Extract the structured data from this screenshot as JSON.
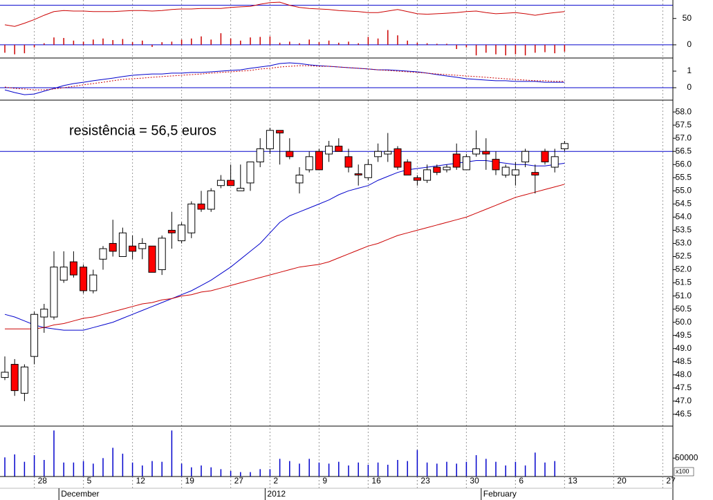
{
  "chart_data": [
    {
      "type": "oscillator",
      "ylim": [
        -25,
        85
      ],
      "yticks": [
        0,
        50
      ],
      "reference_lines": [
        75,
        0
      ],
      "reference_color": "#0000cc",
      "line": {
        "color": "#cc0000",
        "values": [
          38,
          35,
          41,
          48,
          56,
          63,
          65,
          64,
          64,
          63,
          63,
          63,
          64,
          65,
          65,
          64,
          65,
          67,
          68,
          68,
          69,
          69,
          69,
          71,
          72,
          73,
          77,
          80,
          81,
          75,
          71,
          69,
          68,
          67,
          65,
          64,
          63,
          61,
          61,
          64,
          67,
          63,
          59,
          58,
          59,
          60,
          61,
          63,
          64,
          61,
          59,
          60,
          61,
          59,
          56,
          59,
          61,
          63,
          null,
          null,
          null,
          null,
          null,
          null,
          null,
          null,
          null,
          null,
          null
        ]
      },
      "histogram": {
        "color": "#cc0000",
        "values": [
          -15,
          -18,
          -16,
          -5,
          3,
          14,
          13,
          8,
          6,
          10,
          12,
          9,
          11,
          5,
          8,
          -4,
          5,
          6,
          10,
          12,
          16,
          10,
          22,
          12,
          8,
          14,
          15,
          16,
          4,
          6,
          3,
          10,
          5,
          8,
          4,
          6,
          3,
          15,
          12,
          28,
          18,
          8,
          4,
          3,
          2,
          2,
          -8,
          -5,
          -20,
          -15,
          -18,
          -20,
          -18,
          -20,
          -15,
          -14,
          -16,
          -13,
          null,
          null,
          null,
          null,
          null,
          null,
          null,
          null,
          null,
          null,
          null
        ]
      }
    },
    {
      "type": "line",
      "ylim": [
        -0.75,
        1.75
      ],
      "yticks": [
        0,
        1
      ],
      "reference_lines": [
        0
      ],
      "reference_color": "#0000cc",
      "series": [
        {
          "color": "#0000cc",
          "dashed": false,
          "values": [
            -0.13,
            -0.29,
            -0.42,
            -0.38,
            -0.21,
            -0.04,
            0.13,
            0.25,
            0.33,
            0.42,
            0.5,
            0.58,
            0.67,
            0.75,
            0.79,
            0.83,
            0.83,
            0.88,
            0.88,
            0.92,
            0.92,
            0.96,
            1.0,
            1.04,
            1.08,
            1.17,
            1.25,
            1.33,
            1.46,
            1.5,
            1.46,
            1.38,
            1.33,
            1.29,
            1.25,
            1.21,
            1.17,
            1.13,
            1.08,
            1.08,
            1.04,
            1.0,
            0.96,
            0.88,
            0.79,
            0.71,
            0.63,
            0.54,
            0.5,
            0.46,
            0.42,
            0.42,
            0.38,
            0.38,
            0.38,
            0.33,
            0.33,
            0.33,
            null,
            null,
            null,
            null,
            null,
            null,
            null,
            null,
            null,
            null,
            null
          ]
        },
        {
          "color": "#cc0000",
          "dashed": true,
          "values": [
            0.04,
            -0.04,
            -0.08,
            -0.13,
            -0.13,
            -0.08,
            0,
            0.08,
            0.17,
            0.25,
            0.33,
            0.42,
            0.5,
            0.54,
            0.58,
            0.63,
            0.67,
            0.71,
            0.75,
            0.79,
            0.83,
            0.88,
            0.92,
            0.96,
            1.0,
            1.04,
            1.13,
            1.17,
            1.25,
            1.29,
            1.33,
            1.33,
            1.29,
            1.29,
            1.25,
            1.21,
            1.17,
            1.13,
            1.08,
            1.04,
            1.0,
            0.96,
            0.92,
            0.88,
            0.83,
            0.79,
            0.75,
            0.71,
            0.67,
            0.63,
            0.58,
            0.54,
            0.5,
            0.46,
            0.42,
            0.42,
            0.38,
            0.38,
            null,
            null,
            null,
            null,
            null,
            null,
            null,
            null,
            null,
            null,
            null
          ]
        }
      ]
    },
    {
      "type": "candlestick",
      "annotation": "resistência = 56,5 euros",
      "reference_lines": [
        56.5
      ],
      "reference_color": "#0000cc",
      "ylim": [
        46.05,
        58.45
      ],
      "yticks": [
        46.5,
        {
          "value": 47,
          "label": "47.0"
        },
        47.5,
        {
          "value": 48,
          "label": "48.0"
        },
        48.5,
        {
          "value": 49,
          "label": "49.0"
        },
        49.5,
        {
          "value": 50,
          "label": "50.0"
        },
        50.5,
        {
          "value": 51,
          "label": "51.0"
        },
        51.5,
        {
          "value": 52,
          "label": "52.0"
        },
        52.5,
        {
          "value": 53,
          "label": "53.0"
        },
        53.5,
        {
          "value": 54,
          "label": "54.0"
        },
        54.5,
        {
          "value": 55,
          "label": "55.0"
        },
        55.5,
        {
          "value": 56,
          "label": "56.0"
        },
        56.5,
        {
          "value": 57,
          "label": "57.0"
        },
        57.5,
        {
          "value": 58,
          "label": "58.0"
        }
      ],
      "up_color": "#ffffff",
      "down_color": "#ff0000",
      "open": [
        47.9,
        48.4,
        47.3,
        48.7,
        50.2,
        50.2,
        51.6,
        52.3,
        52.1,
        51.2,
        52.4,
        53.0,
        52.5,
        52.9,
        52.8,
        52.9,
        52.0,
        53.5,
        53.1,
        53.4,
        54.5,
        54.3,
        55.2,
        55.4,
        55.0,
        55.3,
        56.1,
        56.6,
        57.3,
        56.5,
        55.3,
        55.8,
        56.5,
        56.4,
        56.7,
        56.3,
        55.65,
        55.5,
        56.3,
        56.4,
        56.6,
        56.1,
        55.5,
        55.4,
        55.9,
        55.8,
        56.4,
        55.8,
        56.4,
        56.5,
        56.2,
        55.6,
        55.6,
        56.1,
        55.7,
        56.5,
        55.9,
        56.6,
        null,
        null,
        null,
        null,
        null,
        null,
        null,
        null,
        null,
        null,
        null
      ],
      "high": [
        48.7,
        48.6,
        48.4,
        50.4,
        50.7,
        52.7,
        52.7,
        52.7,
        52.2,
        52.0,
        52.9,
        53.9,
        53.6,
        53.3,
        53.2,
        52.9,
        53.3,
        54.2,
        53.8,
        54.6,
        55.0,
        55.1,
        55.6,
        56.0,
        56.0,
        56.1,
        57.0,
        57.4,
        57.3,
        57.0,
        55.9,
        56.5,
        56.6,
        56.9,
        57.0,
        56.6,
        56.0,
        56.2,
        56.8,
        57.2,
        56.7,
        56.2,
        55.6,
        56.0,
        56.0,
        56.0,
        56.8,
        56.4,
        57.3,
        57.0,
        56.5,
        56.0,
        56.1,
        56.6,
        56.0,
        56.6,
        56.6,
        56.9,
        null,
        null,
        null,
        null,
        null,
        null,
        null,
        null,
        null,
        null,
        null
      ],
      "low": [
        47.8,
        47.2,
        47.0,
        48.4,
        49.6,
        50.1,
        51.5,
        51.7,
        51.1,
        51.1,
        52.0,
        52.5,
        52.5,
        52.4,
        52.4,
        51.9,
        51.8,
        52.8,
        53.0,
        53.2,
        54.2,
        54.2,
        55.1,
        55.2,
        55.0,
        55.0,
        55.9,
        56.4,
        56.0,
        56.2,
        54.9,
        55.7,
        55.8,
        56.1,
        56.5,
        55.7,
        55.2,
        55.4,
        56.1,
        56.1,
        55.8,
        55.6,
        55.2,
        55.3,
        55.6,
        55.7,
        55.8,
        55.8,
        56.3,
        55.8,
        55.6,
        55.5,
        55.2,
        55.9,
        54.9,
        56.0,
        55.7,
        56.5,
        null,
        null,
        null,
        null,
        null,
        null,
        null,
        null,
        null,
        null,
        null
      ],
      "close": [
        48.1,
        47.4,
        48.3,
        50.3,
        50.5,
        52.1,
        52.1,
        51.8,
        51.2,
        51.8,
        52.8,
        52.7,
        53.4,
        52.7,
        53.0,
        51.9,
        53.2,
        53.4,
        53.7,
        54.5,
        54.3,
        55.0,
        55.4,
        55.2,
        55.1,
        56.1,
        56.6,
        57.3,
        57.2,
        56.3,
        55.6,
        56.3,
        55.8,
        56.7,
        56.5,
        55.9,
        55.6,
        56.0,
        56.5,
        56.5,
        55.9,
        55.6,
        55.4,
        55.8,
        55.7,
        55.9,
        55.9,
        56.3,
        56.6,
        56.4,
        55.8,
        55.9,
        55.8,
        56.5,
        55.6,
        56.1,
        56.3,
        56.8,
        null,
        null,
        null,
        null,
        null,
        null,
        null,
        null,
        null,
        null,
        null
      ],
      "series": [
        {
          "color": "#0000cc",
          "values": [
            50.3,
            50.2,
            50.05,
            49.9,
            49.8,
            49.75,
            49.7,
            49.7,
            49.7,
            49.8,
            49.9,
            50.0,
            50.15,
            50.3,
            50.45,
            50.6,
            50.75,
            50.9,
            51.05,
            51.2,
            51.4,
            51.6,
            51.85,
            52.1,
            52.4,
            52.7,
            53.0,
            53.4,
            53.8,
            54.05,
            54.2,
            54.35,
            54.5,
            54.65,
            54.85,
            55.0,
            55.1,
            55.2,
            55.4,
            55.55,
            55.7,
            55.8,
            55.85,
            55.9,
            55.95,
            56.0,
            56.05,
            56.1,
            56.15,
            56.15,
            56.1,
            56.05,
            56.0,
            56.0,
            55.95,
            55.95,
            56.0,
            56.05,
            null,
            null,
            null,
            null,
            null,
            null,
            null,
            null,
            null,
            null,
            null
          ]
        },
        {
          "color": "#cc0000",
          "values": [
            49.75,
            49.75,
            49.75,
            49.75,
            49.8,
            49.9,
            49.95,
            50.05,
            50.15,
            50.2,
            50.3,
            50.4,
            50.5,
            50.6,
            50.7,
            50.75,
            50.85,
            50.9,
            51.0,
            51.05,
            51.15,
            51.2,
            51.3,
            51.4,
            51.5,
            51.6,
            51.7,
            51.8,
            51.9,
            52.0,
            52.1,
            52.15,
            52.2,
            52.3,
            52.45,
            52.6,
            52.75,
            52.9,
            53.0,
            53.15,
            53.3,
            53.4,
            53.5,
            53.6,
            53.7,
            53.8,
            53.9,
            54.0,
            54.15,
            54.3,
            54.45,
            54.6,
            54.75,
            54.85,
            54.95,
            55.05,
            55.15,
            55.25,
            null,
            null,
            null,
            null,
            null,
            null,
            null,
            null,
            null,
            null,
            null
          ]
        }
      ]
    },
    {
      "type": "bar",
      "color": "#0000cc",
      "ylim": [
        0,
        135000
      ],
      "yticks": [
        50000
      ],
      "unit_label": "x100",
      "values": [
        52000,
        60000,
        40000,
        58000,
        45000,
        125000,
        38000,
        38000,
        42000,
        35000,
        50000,
        78000,
        62000,
        38000,
        30000,
        42000,
        40000,
        125000,
        35000,
        25000,
        30000,
        25000,
        20000,
        15000,
        12000,
        12000,
        20000,
        20000,
        48000,
        42000,
        35000,
        48000,
        38000,
        35000,
        40000,
        30000,
        38000,
        32000,
        38000,
        32000,
        45000,
        42000,
        72000,
        38000,
        35000,
        40000,
        35000,
        40000,
        58000,
        48000,
        40000,
        30000,
        40000,
        30000,
        65000,
        38000,
        42000,
        null,
        null,
        null,
        null,
        null,
        null,
        null,
        null,
        null,
        null,
        null,
        null
      ],
      "categories": [
        null,
        null,
        null,
        "28",
        null,
        null,
        null,
        null,
        "5",
        null,
        null,
        null,
        null,
        "12",
        null,
        null,
        null,
        null,
        "19",
        null,
        null,
        null,
        null,
        "27",
        null,
        null,
        null,
        "2",
        null,
        null,
        null,
        null,
        "9",
        null,
        null,
        null,
        null,
        "16",
        null,
        null,
        null,
        null,
        "23",
        null,
        null,
        null,
        null,
        "30",
        null,
        null,
        null,
        null,
        "6",
        null,
        null,
        null,
        null,
        "13",
        null,
        null,
        null,
        null,
        "20",
        null,
        null,
        null,
        null,
        "27",
        null
      ],
      "month_categories": [
        null,
        null,
        null,
        null,
        null,
        null,
        "December",
        null,
        null,
        null,
        null,
        null,
        null,
        null,
        null,
        null,
        null,
        null,
        null,
        null,
        null,
        null,
        null,
        null,
        null,
        null,
        null,
        "2012",
        null,
        null,
        null,
        null,
        null,
        null,
        null,
        null,
        null,
        null,
        null,
        null,
        null,
        null,
        null,
        null,
        null,
        null,
        null,
        null,
        null,
        "February",
        null,
        null,
        null,
        null,
        null,
        null,
        null,
        null,
        null,
        null,
        null,
        null,
        null,
        null,
        null,
        null,
        null,
        null,
        null
      ]
    }
  ]
}
